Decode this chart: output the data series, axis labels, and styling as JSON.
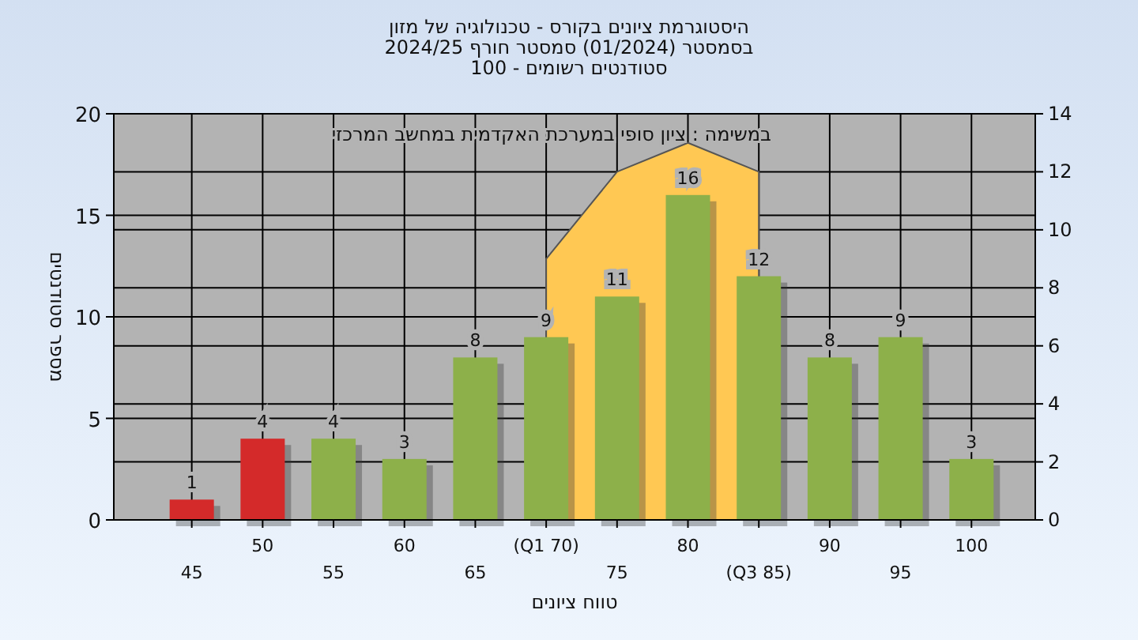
{
  "chart_data": {
    "type": "bar",
    "title": "היסטוגרמת ציונים בקורס - טכנולוגיה של מזון\nבסמסטר  (01/2024)  סמסטר חורף 2024/25\nסטודנטים רשומים - 100",
    "xlabel": "טווח ציונים",
    "ylabel": "מספר סטודנטים",
    "annotations": [
      "במשימה : ציון סופי במערכת האקדמית במחשב המרכזי"
    ],
    "categories": [
      "45",
      "50",
      "55",
      "60",
      "65",
      "(Q1 70)",
      "75",
      "80",
      "(Q3 85)",
      "90",
      "95",
      "100"
    ],
    "series": [
      {
        "type": "area",
        "axis": "y2",
        "color": "#c4c4c4",
        "values": [
          null,
          null,
          null,
          null,
          null,
          9,
          null,
          null,
          12,
          null,
          null,
          null
        ]
      },
      {
        "type": "area",
        "axis": "y2",
        "color": "#ffc853",
        "values": [
          null,
          null,
          null,
          null,
          null,
          9,
          12,
          13,
          12,
          null,
          null,
          null
        ]
      },
      {
        "value_labels": [
          "1",
          "4",
          "4",
          "3",
          "8",
          "9",
          "11",
          "16",
          "12",
          "8",
          "9",
          "3"
        ],
        "colors": [
          "#d42a2a",
          "#d42a2a",
          "#8db04a",
          "#8db04a",
          "#8db04a",
          "#8db04a",
          "#8db04a",
          "#8db04a",
          "#8db04a",
          "#8db04a",
          "#8db04a",
          "#8db04a"
        ],
        "values": [
          1,
          4,
          4,
          3,
          8,
          9,
          11,
          16,
          12,
          8,
          9,
          3
        ]
      }
    ],
    "ylim": [
      0,
      20
    ],
    "yticks": [
      0,
      5,
      10,
      15,
      20
    ],
    "y2lim": [
      0,
      14
    ],
    "y2ticks": [
      0,
      2,
      4,
      6,
      8,
      10,
      12,
      14
    ],
    "grid": true
  }
}
